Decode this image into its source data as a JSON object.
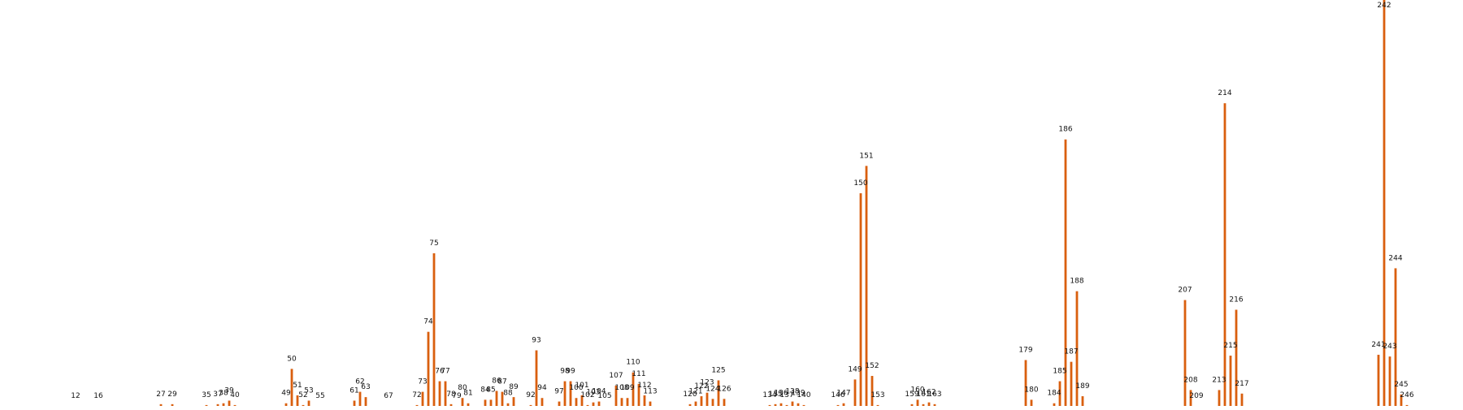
{
  "colors": {
    "bar": "#d95f0e",
    "label": "#111111",
    "background": "#ffffff"
  },
  "chart_data": {
    "type": "bar",
    "xlim": [
      0,
      255
    ],
    "ylim": [
      0,
      46
    ],
    "x": [
      12,
      16,
      27,
      29,
      35,
      37,
      38,
      39,
      40,
      49,
      50,
      51,
      52,
      53,
      55,
      61,
      62,
      63,
      67,
      72,
      73,
      74,
      75,
      76,
      77,
      78,
      79,
      80,
      81,
      84,
      85,
      86,
      87,
      88,
      89,
      92,
      93,
      94,
      97,
      98,
      99,
      100,
      101,
      102,
      103,
      104,
      105,
      107,
      108,
      109,
      110,
      111,
      112,
      113,
      120,
      121,
      122,
      123,
      124,
      125,
      126,
      134,
      135,
      136,
      137,
      138,
      139,
      140,
      146,
      147,
      149,
      150,
      151,
      152,
      153,
      159,
      160,
      161,
      162,
      163,
      179,
      180,
      184,
      185,
      186,
      187,
      188,
      189,
      207,
      208,
      209,
      213,
      214,
      215,
      216,
      217,
      241,
      242,
      243,
      244,
      245,
      246
    ],
    "values": [
      0,
      0,
      0.2,
      0.2,
      0.1,
      0.2,
      0.3,
      0.6,
      0.1,
      0.3,
      4.2,
      1.2,
      0.1,
      0.6,
      0,
      0.6,
      1.6,
      1,
      0,
      0.1,
      1.6,
      8.4,
      17.3,
      2.8,
      2.8,
      0.2,
      0,
      0.9,
      0.3,
      0.7,
      0.7,
      1.7,
      1.6,
      0.3,
      1,
      0.1,
      6.3,
      0.9,
      0.5,
      2.8,
      2.8,
      0.9,
      1.2,
      0.1,
      0.4,
      0.5,
      0,
      2.3,
      0.9,
      0.9,
      3.8,
      2.5,
      1.2,
      0.5,
      0.2,
      0.5,
      1.1,
      1.5,
      0.8,
      2.9,
      0.8,
      0.1,
      0.2,
      0.3,
      0.1,
      0.5,
      0.3,
      0.1,
      0.1,
      0.3,
      3,
      24.1,
      27.2,
      3.4,
      0.1,
      0.2,
      0.7,
      0.2,
      0.4,
      0.2,
      5.2,
      0.7,
      0.3,
      2.8,
      30.2,
      5,
      13,
      1.1,
      12,
      1.8,
      0,
      1.8,
      34.3,
      5.7,
      10.9,
      1.4,
      5.8,
      46.4,
      5.6,
      15.6,
      1.3,
      0.1
    ],
    "labels": [
      "12",
      "16",
      "27",
      "29",
      "35",
      "37",
      "38",
      "39",
      "40",
      "49",
      "50",
      "51",
      "52",
      "53",
      "55",
      "61",
      "62",
      "63",
      "67",
      "72",
      "73",
      "74",
      "75",
      "76",
      "77",
      "78",
      "79",
      "80",
      "81",
      "84",
      "85",
      "86",
      "87",
      "88",
      "89",
      "92",
      "93",
      "94",
      "97",
      "98",
      "99",
      "100",
      "101",
      "102",
      "103",
      "104",
      "105",
      "107",
      "108",
      "109",
      "110",
      "111",
      "112",
      "113",
      "120",
      "121",
      "122",
      "123",
      "124",
      "125",
      "126",
      "134",
      "135",
      "136",
      "137",
      "138",
      "139",
      "140",
      "146",
      "147",
      "149",
      "150",
      "151",
      "152",
      "153",
      "159",
      "160",
      "161",
      "162",
      "163",
      "179",
      "180",
      "184",
      "185",
      "186",
      "187",
      "188",
      "189",
      "207",
      "208",
      "209",
      "213",
      "214",
      "215",
      "216",
      "217",
      "241",
      "242",
      "243",
      "244",
      "245",
      "246"
    ]
  }
}
